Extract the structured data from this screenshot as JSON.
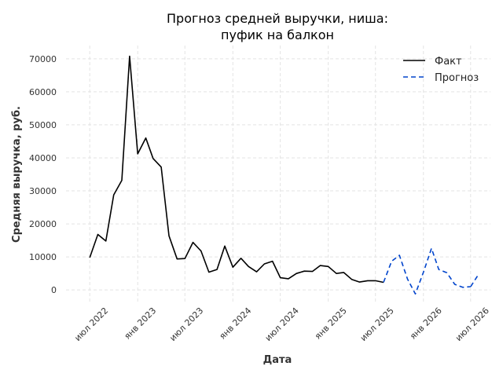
{
  "chart_data": {
    "type": "line",
    "title_lines": [
      "Прогноз средней выручки, ниша:",
      "пуфик на балкон"
    ],
    "xlabel": "Дата",
    "ylabel": "Средняя выручка, руб.",
    "ylim": [
      -4000,
      74000
    ],
    "xlim": [
      "2022-04-01",
      "2026-09-15"
    ],
    "yticks": [
      0,
      10000,
      20000,
      30000,
      40000,
      50000,
      60000,
      70000
    ],
    "ytick_labels": [
      "0",
      "10000",
      "20000",
      "30000",
      "40000",
      "50000",
      "60000",
      "70000"
    ],
    "xticks": [
      "2022-07-01",
      "2023-01-01",
      "2023-07-01",
      "2024-01-01",
      "2024-07-01",
      "2025-01-01",
      "2025-07-01",
      "2026-01-01",
      "2026-07-01"
    ],
    "xtick_labels": [
      "июл 2022",
      "янв 2023",
      "июл 2023",
      "янв 2024",
      "июл 2024",
      "янв 2025",
      "июл 2025",
      "янв 2026",
      "июл 2026"
    ],
    "grid": true,
    "legend_position": "top-right",
    "series": [
      {
        "name": "Факт",
        "color": "#000000",
        "style": "solid",
        "x": [
          "2022-07-01",
          "2022-08-01",
          "2022-09-01",
          "2022-10-01",
          "2022-11-01",
          "2022-12-01",
          "2023-01-01",
          "2023-02-01",
          "2023-03-01",
          "2023-04-01",
          "2023-05-01",
          "2023-06-01",
          "2023-07-01",
          "2023-08-01",
          "2023-09-01",
          "2023-10-01",
          "2023-11-01",
          "2023-12-01",
          "2024-01-01",
          "2024-02-01",
          "2024-03-01",
          "2024-04-01",
          "2024-05-01",
          "2024-06-01",
          "2024-07-01",
          "2024-08-01",
          "2024-09-01",
          "2024-10-01",
          "2024-11-01",
          "2024-12-01",
          "2025-01-01",
          "2025-02-01",
          "2025-03-01",
          "2025-04-01",
          "2025-05-01",
          "2025-06-01",
          "2025-07-01",
          "2025-08-01"
        ],
        "y": [
          9800,
          16800,
          14800,
          28800,
          33200,
          70800,
          41200,
          46000,
          39800,
          37200,
          16400,
          9400,
          9500,
          14400,
          11800,
          5400,
          6200,
          13300,
          6900,
          9600,
          7100,
          5500,
          7900,
          8700,
          3700,
          3400,
          5000,
          5700,
          5600,
          7400,
          7100,
          5000,
          5300,
          3200,
          2400,
          2800,
          2800,
          2300
        ]
      },
      {
        "name": "Прогноз",
        "color": "#0044cc",
        "style": "dashed",
        "x": [
          "2025-08-01",
          "2025-09-01",
          "2025-10-01",
          "2025-11-01",
          "2025-12-01",
          "2026-01-01",
          "2026-02-01",
          "2026-03-01",
          "2026-04-01",
          "2026-05-01",
          "2026-06-01",
          "2026-07-01"
        ],
        "y": [
          2300,
          8700,
          10500,
          3300,
          -1200,
          5400,
          12600,
          6200,
          5200,
          1700,
          800,
          1000
        ]
      },
      {
        "name": "",
        "color": "#0044cc",
        "style": "dashed",
        "x": [
          "2026-07-01",
          "2026-08-01"
        ],
        "y": [
          1000,
          4800
        ]
      }
    ]
  }
}
